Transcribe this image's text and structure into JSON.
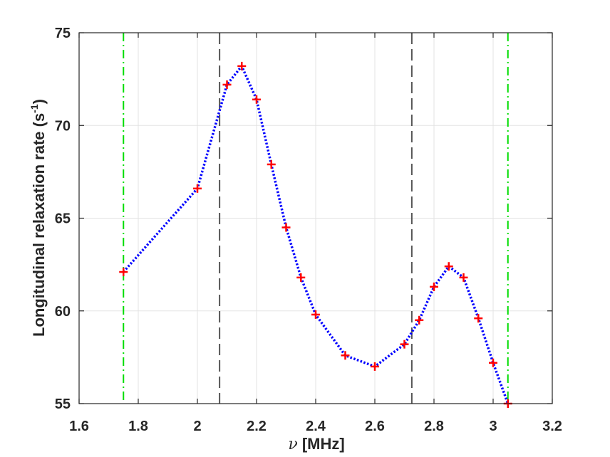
{
  "chart_data": {
    "type": "line",
    "title": "",
    "xlabel_symbol": "ν",
    "xlabel_unit": "[MHz]",
    "ylabel_text": "Longitudinal relaxation rate (s",
    "ylabel_exp": "-1",
    "ylabel_close": ")",
    "xlim": [
      1.6,
      3.2
    ],
    "ylim": [
      55,
      75
    ],
    "xticks": [
      1.6,
      1.8,
      2,
      2.2,
      2.4,
      2.6,
      2.8,
      3,
      3.2
    ],
    "xtick_labels": [
      "1.6",
      "1.8",
      "2",
      "2.2",
      "2.4",
      "2.6",
      "2.8",
      "3",
      "3.2"
    ],
    "yticks": [
      55,
      60,
      65,
      70,
      75
    ],
    "ytick_labels": [
      "55",
      "60",
      "65",
      "70",
      "75"
    ],
    "grid": true,
    "series": [
      {
        "style": "dotted line with plus markers",
        "line_color": "#0000ff",
        "marker_color": "#ff0000",
        "x": [
          1.75,
          2.0,
          2.1,
          2.15,
          2.2,
          2.25,
          2.3,
          2.35,
          2.4,
          2.5,
          2.6,
          2.7,
          2.75,
          2.8,
          2.85,
          2.9,
          2.95,
          3.0,
          3.05
        ],
        "y": [
          62.1,
          66.6,
          72.2,
          73.2,
          71.4,
          67.9,
          64.5,
          61.8,
          59.8,
          57.6,
          57.0,
          58.2,
          59.5,
          61.3,
          62.4,
          61.8,
          59.6,
          57.2,
          55.0
        ]
      }
    ],
    "vlines": [
      {
        "x": 1.75,
        "style": "dash-dot",
        "color": "#00dd00"
      },
      {
        "x": 2.075,
        "style": "dashed",
        "color": "#555555"
      },
      {
        "x": 2.725,
        "style": "dashed",
        "color": "#555555"
      },
      {
        "x": 3.05,
        "style": "dash-dot",
        "color": "#00dd00"
      }
    ]
  }
}
